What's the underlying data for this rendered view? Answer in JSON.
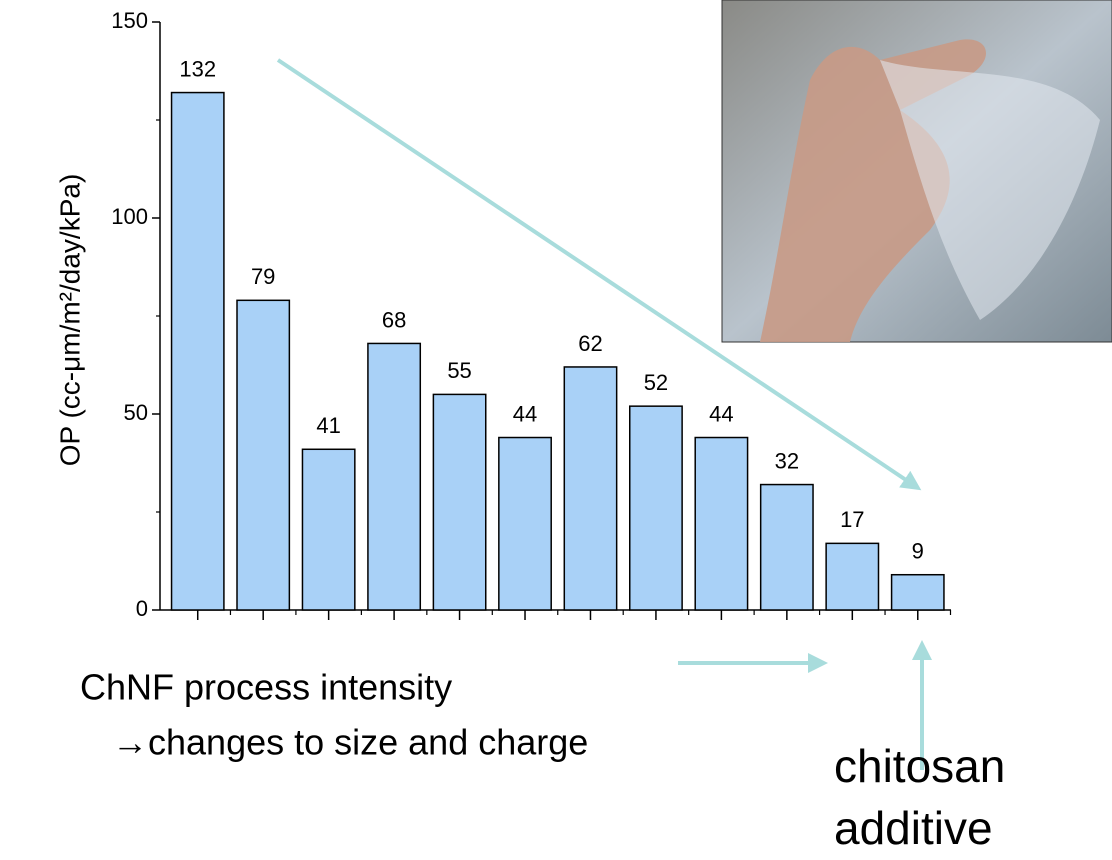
{
  "chart_data": {
    "type": "bar",
    "y_label": "OP (cc-μm/m²/day/kPa)",
    "categories": [
      null,
      null,
      null,
      null,
      null,
      null,
      null,
      null,
      null,
      null,
      null,
      null
    ],
    "values": [
      132,
      79,
      41,
      68,
      55,
      44,
      62,
      52,
      44,
      32,
      17,
      9
    ],
    "color": "#a9d1f7",
    "ylim": [
      0,
      150
    ],
    "yticks": [
      0,
      50,
      100,
      150
    ],
    "minor_yticks": [
      25,
      75,
      125
    ],
    "annotations": [
      "ChNF process intensity",
      "→changes to size and charge",
      "chitosan",
      "additive"
    ]
  }
}
